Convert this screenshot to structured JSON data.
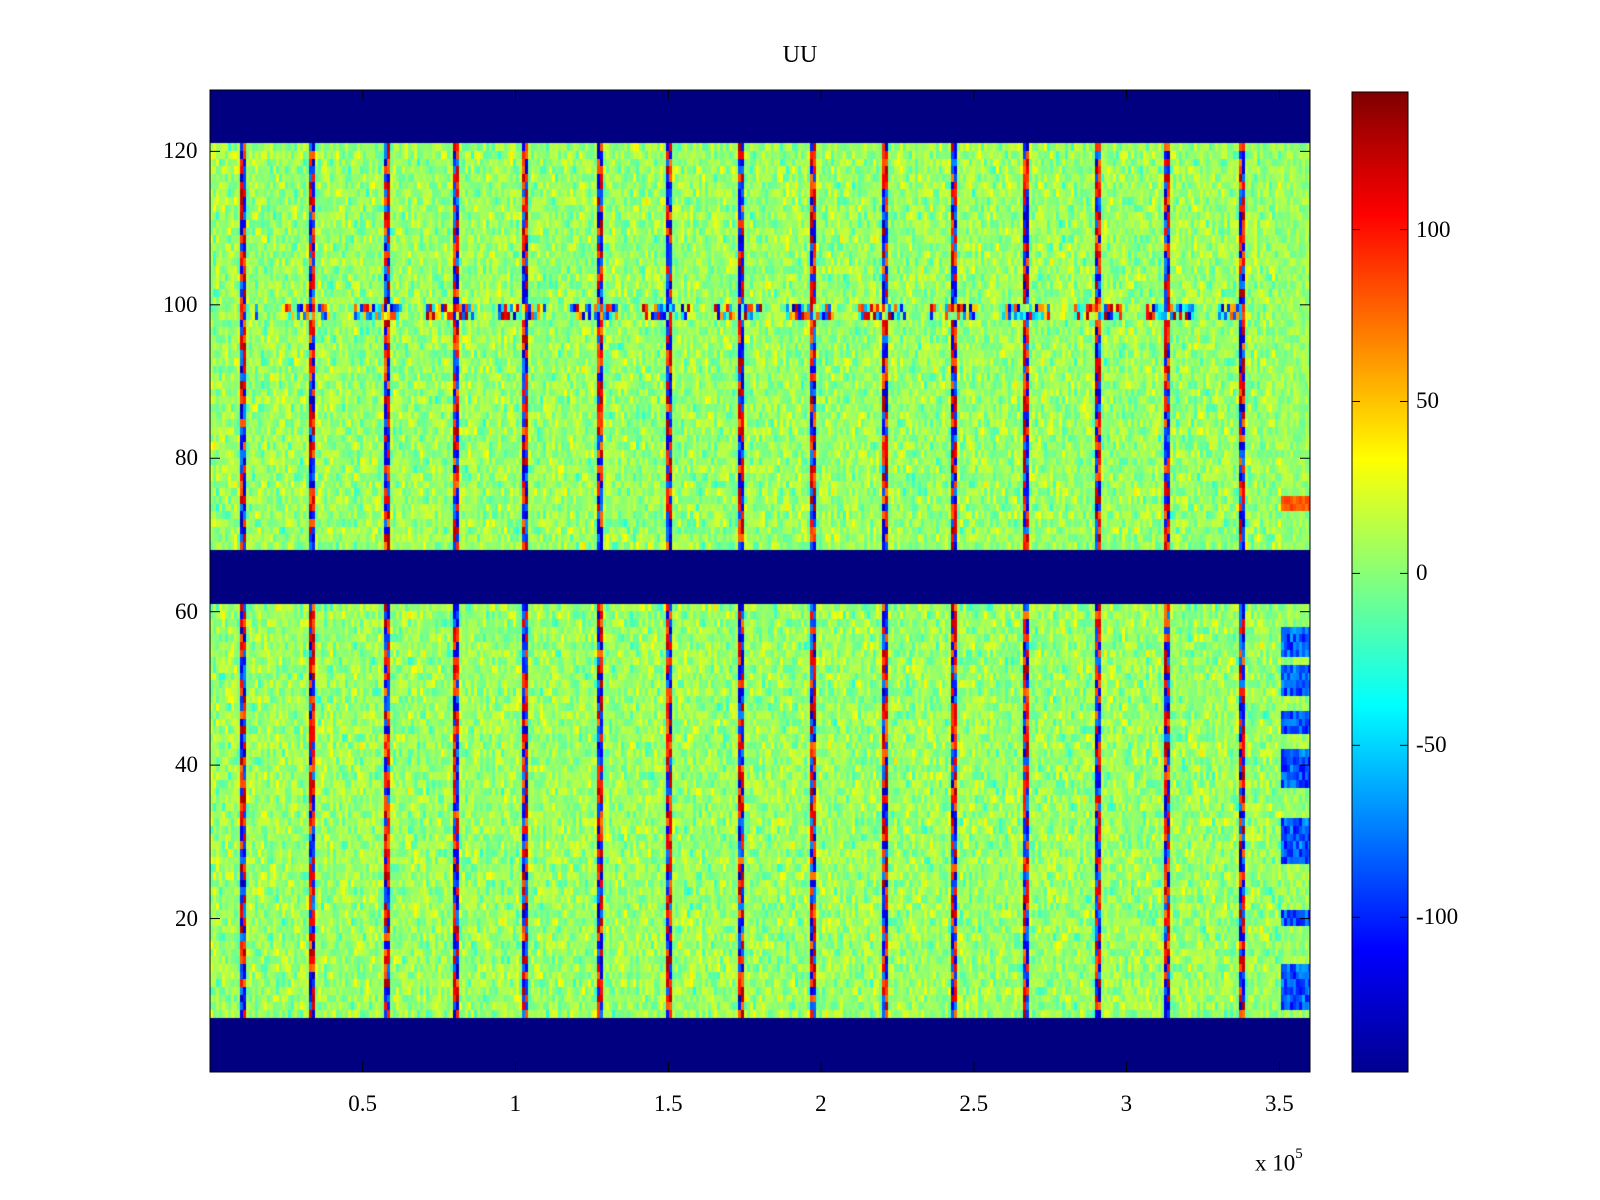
{
  "chart_data": {
    "type": "heatmap",
    "title": "UU",
    "xlabel": "",
    "ylabel": "",
    "x_multiplier_label": {
      "base": "x 10",
      "exponent": "5"
    },
    "xlim": [
      0,
      360000
    ],
    "ylim": [
      0,
      128
    ],
    "x_ticks": [
      0.5,
      1,
      1.5,
      2,
      2.5,
      3,
      3.5
    ],
    "x_tick_labels": [
      "0.5",
      "1",
      "1.5",
      "2",
      "2.5",
      "3",
      "3.5"
    ],
    "y_ticks": [
      20,
      40,
      60,
      80,
      100,
      120
    ],
    "y_tick_labels": [
      "20",
      "40",
      "60",
      "80",
      "100",
      "120"
    ],
    "colorbar": {
      "colormap": "jet",
      "range": [
        -145,
        140
      ],
      "ticks": [
        -100,
        -50,
        0,
        50,
        100
      ],
      "tick_labels": [
        "-100",
        "-50",
        "0",
        "50",
        "100"
      ]
    },
    "empty_value": -145,
    "blank_row_bands": [
      [
        0,
        7
      ],
      [
        61,
        68
      ],
      [
        121,
        128
      ]
    ],
    "data_row_bands": [
      [
        7,
        61
      ],
      [
        68,
        121
      ]
    ],
    "noise_baseline": 5,
    "noise_amplitude": 25,
    "periodic_columns_x": [
      10000,
      33000,
      57000,
      80000,
      103000,
      127000,
      150000,
      173000,
      197000,
      220000,
      243000,
      267000,
      290000,
      313000,
      337000
    ],
    "burst_row": 99,
    "burst_value_range": [
      -130,
      130
    ],
    "right_edge_column_x_range": [
      350000,
      360000
    ],
    "right_edge_low_segments_y": [
      [
        8,
        14
      ],
      [
        19,
        21
      ],
      [
        27,
        33
      ],
      [
        37,
        42
      ],
      [
        44,
        47
      ],
      [
        49,
        53
      ],
      [
        54,
        58
      ]
    ],
    "right_edge_high_segments_y": [
      [
        73,
        75
      ]
    ]
  }
}
